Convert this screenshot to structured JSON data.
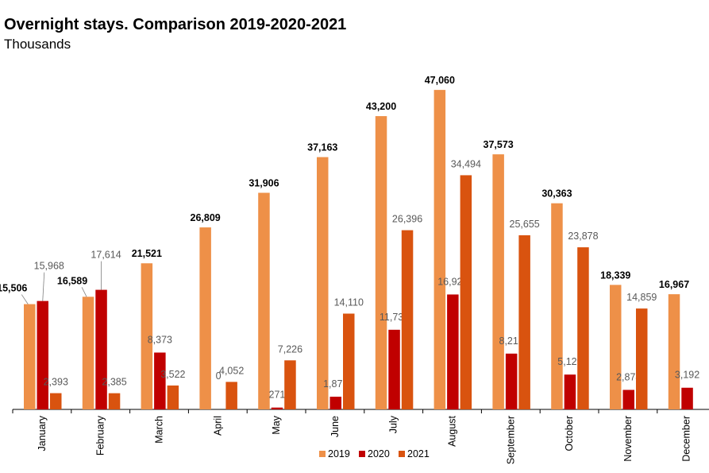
{
  "chart_data": {
    "type": "bar",
    "title": "Overnight stays. Comparison 2019-2020-2021",
    "subtitle": "Thousands",
    "categories": [
      "January",
      "February",
      "March",
      "April",
      "May",
      "June",
      "July",
      "August",
      "September",
      "October",
      "November",
      "December"
    ],
    "series": [
      {
        "name": "2019",
        "color": "#EE9048",
        "values": [
          15506,
          16589,
          21521,
          26809,
          31906,
          37163,
          43200,
          47060,
          37573,
          30363,
          18339,
          16967
        ],
        "labels": [
          "15,506",
          "16,589",
          "21,521",
          "26,809",
          "31,906",
          "37,163",
          "43,200",
          "47,060",
          "37,573",
          "30,363",
          "18,339",
          "16,967"
        ]
      },
      {
        "name": "2020",
        "color": "#C00000",
        "values": [
          15968,
          17614,
          8373,
          0,
          271,
          1870,
          11731,
          16927,
          8219,
          5129,
          2874,
          3192
        ],
        "labels": [
          "15,968",
          "17,614",
          "8,373",
          "0",
          "271",
          "1,870",
          "11,731",
          "16,927",
          "8,219",
          "5,129",
          "2,874",
          "3,192"
        ]
      },
      {
        "name": "2021",
        "color": "#D9530F",
        "values": [
          2393,
          2385,
          3522,
          4052,
          7226,
          14110,
          26396,
          34494,
          25655,
          23878,
          14859,
          null
        ],
        "labels": [
          "2,393",
          "2,385",
          "3,522",
          "4,052",
          "7,226",
          "14,110",
          "26,396",
          "34,494",
          "25,655",
          "23,878",
          "14,859",
          null
        ]
      }
    ],
    "ylim": [
      0,
      50000
    ],
    "grid": false,
    "legend": "bottom"
  }
}
